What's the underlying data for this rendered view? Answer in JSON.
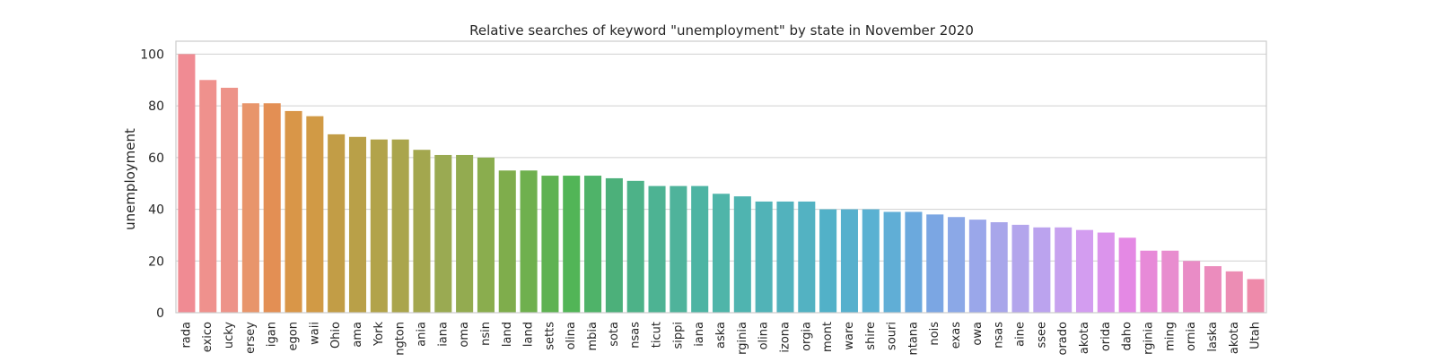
{
  "chart_data": {
    "type": "bar",
    "title": "Relative searches of keyword \"unemployment\" by state in November 2020",
    "xlabel": "",
    "ylabel": "unemployment",
    "ylim": [
      0,
      105
    ],
    "yticks": [
      0,
      20,
      40,
      60,
      80,
      100
    ],
    "grid": "horizontal",
    "categories": [
      "rada",
      "exico",
      "ucky",
      "ersey",
      "igan",
      "egon",
      "waii",
      "Ohio",
      "ama",
      "York",
      "ngton",
      "ania",
      "iana",
      "oma",
      "nsin",
      "land",
      "land",
      "setts",
      "olina",
      "mbia",
      "sota",
      "nsas",
      "ticut",
      "sippi",
      "iana",
      "aska",
      "rginia",
      "olina",
      "izona",
      "orgia",
      "mont",
      "ware",
      "shire",
      "souri",
      "ntana",
      "nois",
      "exas",
      "owa",
      "nsas",
      "aine",
      "ssee",
      "orado",
      "akota",
      "orida",
      "daho",
      "rginia",
      "ming",
      "ornia",
      "laska",
      "akota",
      "Utah"
    ],
    "values": [
      100,
      90,
      87,
      81,
      81,
      78,
      76,
      69,
      68,
      67,
      67,
      63,
      61,
      61,
      60,
      55,
      55,
      53,
      53,
      53,
      52,
      51,
      49,
      49,
      49,
      46,
      45,
      43,
      43,
      43,
      40,
      40,
      40,
      39,
      39,
      38,
      37,
      36,
      35,
      34,
      33,
      33,
      32,
      31,
      29,
      24,
      24,
      20,
      18,
      16,
      13
    ],
    "colors": [
      "#f08b93",
      "#ef918d",
      "#ed9389",
      "#e8956b",
      "#e38f54",
      "#d99648",
      "#d19a45",
      "#c29d46",
      "#b9a048",
      "#b2a34a",
      "#aaa54c",
      "#a3a74e",
      "#9aaa52",
      "#93ab50",
      "#8aad4e",
      "#7fad4c",
      "#6fb04e",
      "#5fb252",
      "#52b557",
      "#4fb369",
      "#4cb07a",
      "#4db288",
      "#4db393",
      "#4fb39b",
      "#4db4a3",
      "#4fb5a9",
      "#4fb4b0",
      "#51b3b7",
      "#52b2bd",
      "#53b2c2",
      "#52b1c8",
      "#56b0cd",
      "#5ab1d2",
      "#60aed6",
      "#6ba9dd",
      "#7ba6e3",
      "#8ba8e7",
      "#9aa7ea",
      "#a8a6ea",
      "#b3a5ec",
      "#bba3ee",
      "#c7a2ef",
      "#d39df0",
      "#db94ec",
      "#e489e4",
      "#e78ad8",
      "#e88dcf",
      "#e98cc6",
      "#eb8cbd",
      "#ec8db4",
      "#ee8aaa"
    ]
  }
}
